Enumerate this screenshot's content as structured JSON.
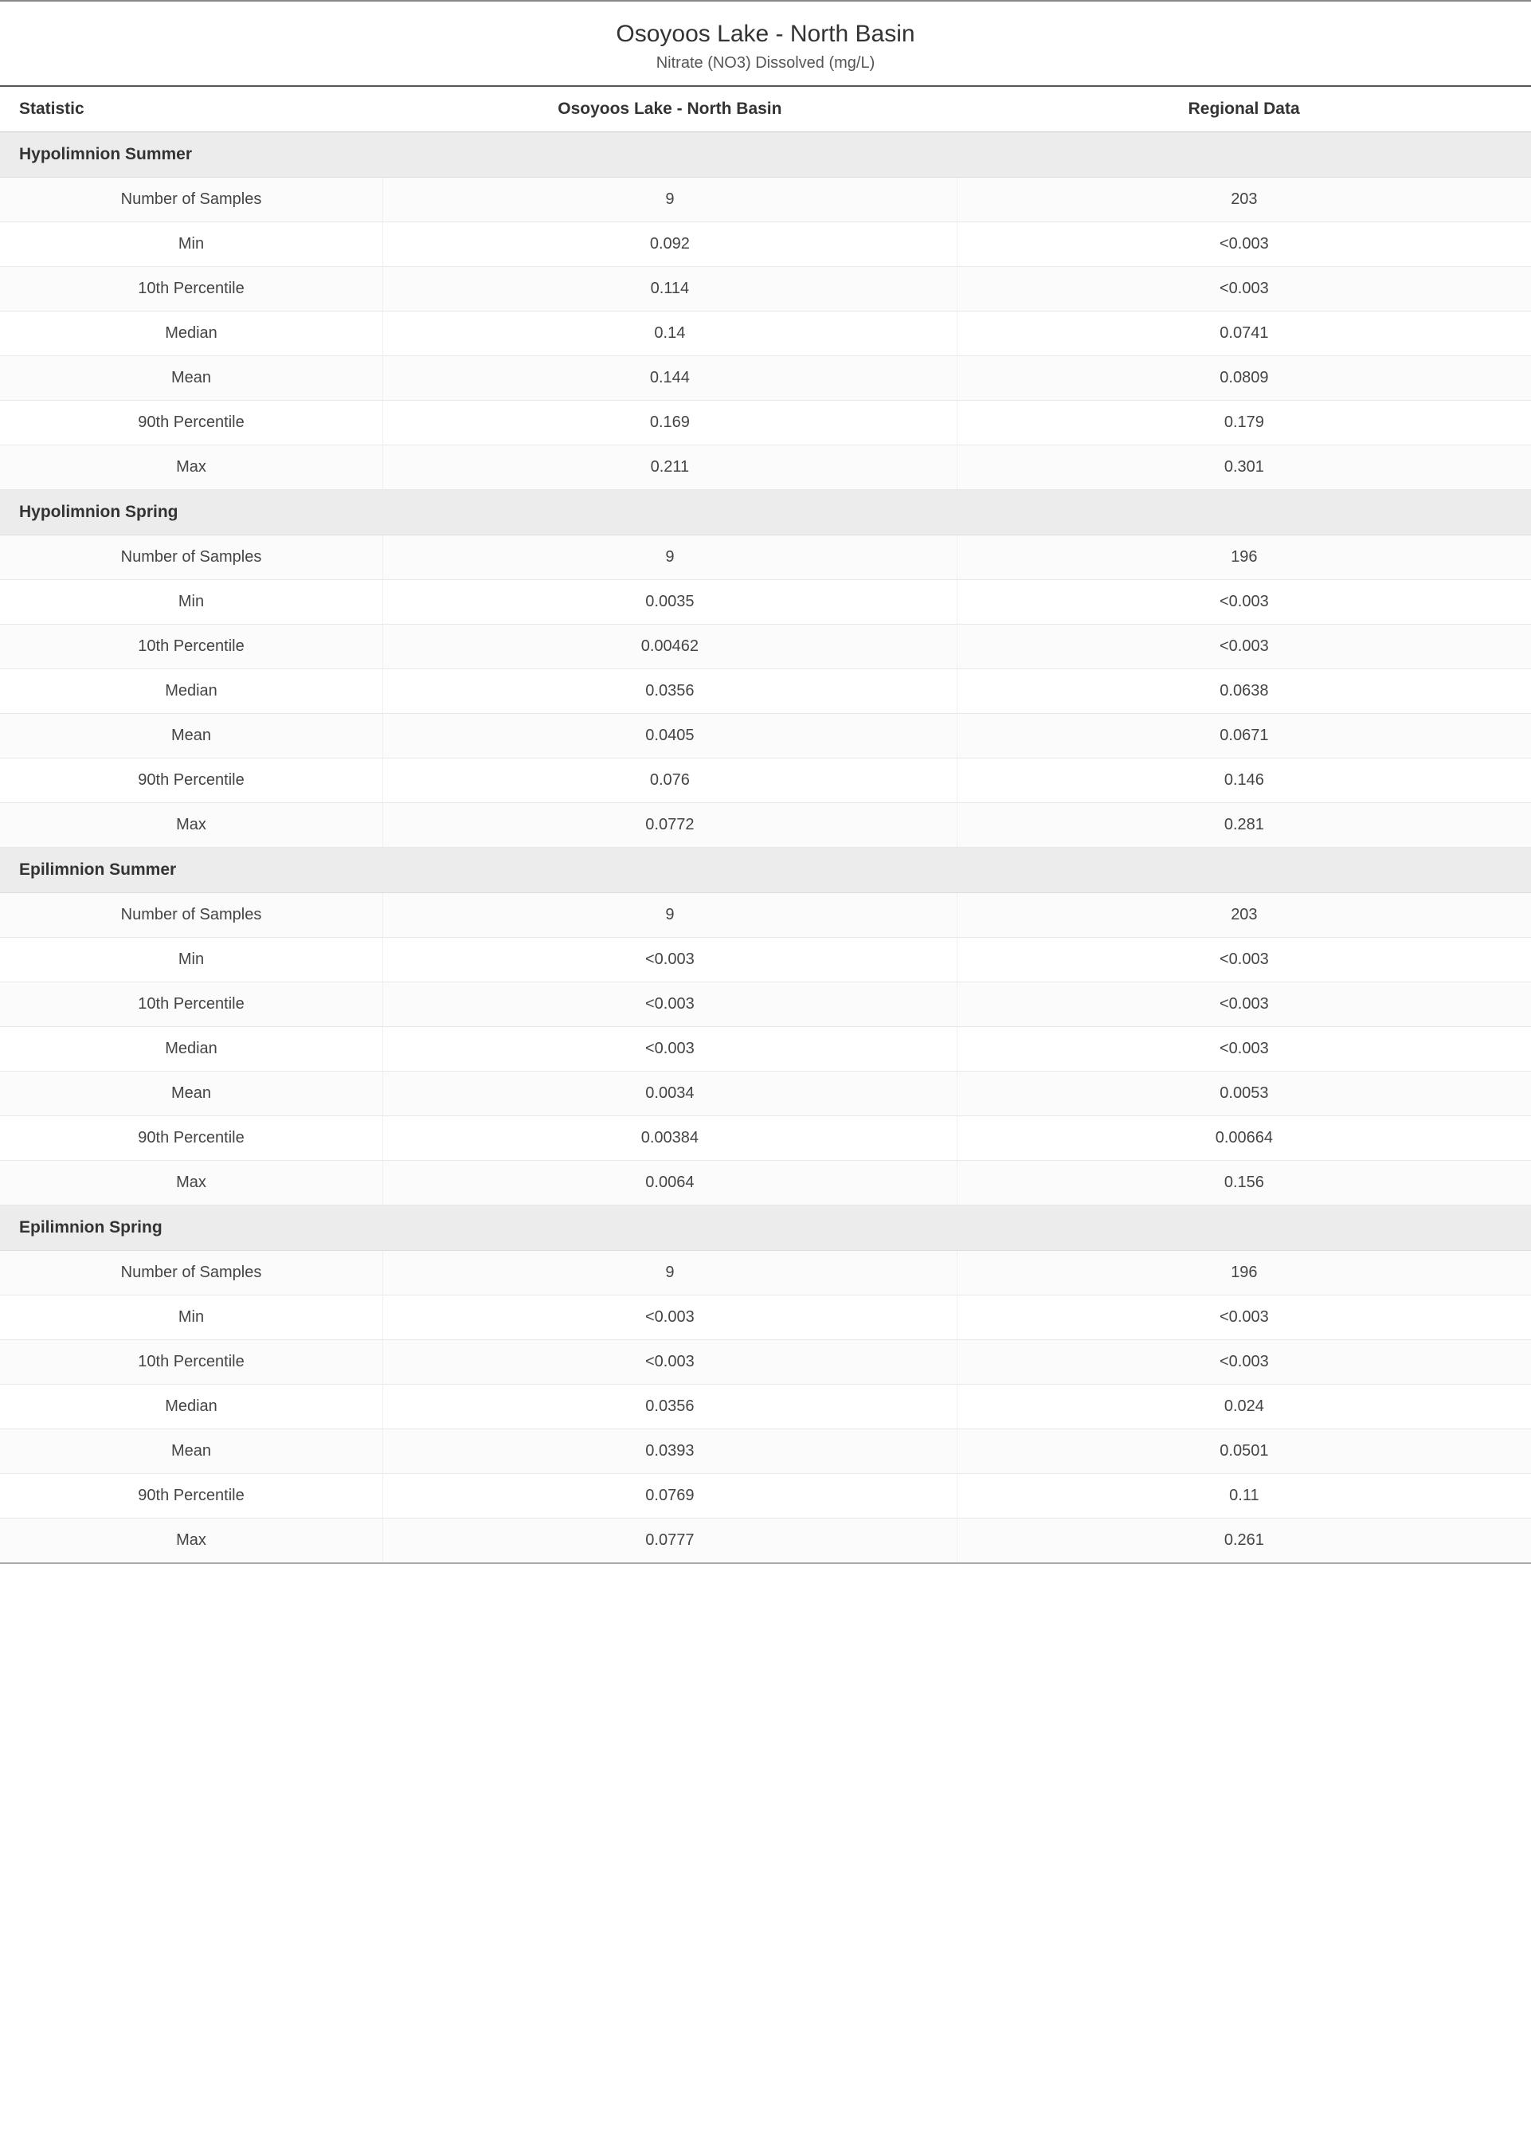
{
  "title": "Osoyoos Lake - North Basin",
  "subtitle": "Nitrate (NO3) Dissolved (mg/L)",
  "columns": {
    "statistic": "Statistic",
    "site": "Osoyoos Lake - North Basin",
    "regional": "Regional Data"
  },
  "stat_labels": [
    "Number of Samples",
    "Min",
    "10th Percentile",
    "Median",
    "Mean",
    "90th Percentile",
    "Max"
  ],
  "sections": [
    {
      "name": "Hypolimnion Summer",
      "rows": [
        {
          "site": "9",
          "regional": "203"
        },
        {
          "site": "0.092",
          "regional": "<0.003"
        },
        {
          "site": "0.114",
          "regional": "<0.003"
        },
        {
          "site": "0.14",
          "regional": "0.0741"
        },
        {
          "site": "0.144",
          "regional": "0.0809"
        },
        {
          "site": "0.169",
          "regional": "0.179"
        },
        {
          "site": "0.211",
          "regional": "0.301"
        }
      ]
    },
    {
      "name": "Hypolimnion Spring",
      "rows": [
        {
          "site": "9",
          "regional": "196"
        },
        {
          "site": "0.0035",
          "regional": "<0.003"
        },
        {
          "site": "0.00462",
          "regional": "<0.003"
        },
        {
          "site": "0.0356",
          "regional": "0.0638"
        },
        {
          "site": "0.0405",
          "regional": "0.0671"
        },
        {
          "site": "0.076",
          "regional": "0.146"
        },
        {
          "site": "0.0772",
          "regional": "0.281"
        }
      ]
    },
    {
      "name": "Epilimnion Summer",
      "rows": [
        {
          "site": "9",
          "regional": "203"
        },
        {
          "site": "<0.003",
          "regional": "<0.003"
        },
        {
          "site": "<0.003",
          "regional": "<0.003"
        },
        {
          "site": "<0.003",
          "regional": "<0.003"
        },
        {
          "site": "0.0034",
          "regional": "0.0053"
        },
        {
          "site": "0.00384",
          "regional": "0.00664"
        },
        {
          "site": "0.0064",
          "regional": "0.156"
        }
      ]
    },
    {
      "name": "Epilimnion Spring",
      "rows": [
        {
          "site": "9",
          "regional": "196"
        },
        {
          "site": "<0.003",
          "regional": "<0.003"
        },
        {
          "site": "<0.003",
          "regional": "<0.003"
        },
        {
          "site": "0.0356",
          "regional": "0.024"
        },
        {
          "site": "0.0393",
          "regional": "0.0501"
        },
        {
          "site": "0.0769",
          "regional": "0.11"
        },
        {
          "site": "0.0777",
          "regional": "0.261"
        }
      ]
    }
  ],
  "colors": {
    "section_header_bg": "#ececec",
    "border_top": "#888888",
    "header_border": "#555555",
    "row_border": "#e8e8e8",
    "text_primary": "#333333",
    "text_secondary": "#555555"
  }
}
